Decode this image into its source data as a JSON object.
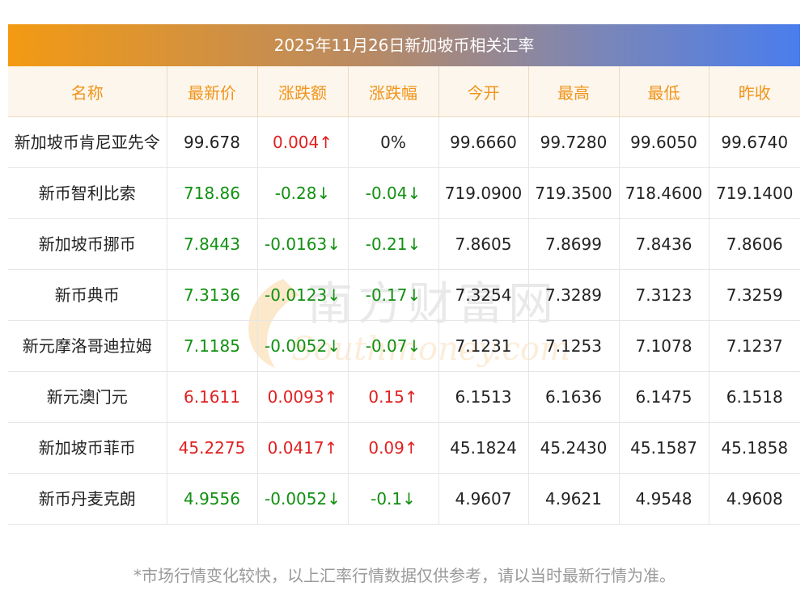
{
  "title": "2025年11月26日新加坡币相关汇率",
  "headers": [
    "名称",
    "最新价",
    "涨跌额",
    "涨跌幅",
    "今开",
    "最高",
    "最低",
    "昨收"
  ],
  "rows": [
    {
      "name": "新加坡币肯尼亚先令",
      "latest": "99.678",
      "change": "0.004↑",
      "pct": "0%",
      "open": "99.6660",
      "high": "99.7280",
      "low": "99.6050",
      "prev": "99.6740",
      "latest_dir": "flat",
      "change_dir": "up",
      "pct_dir": "flat"
    },
    {
      "name": "新币智利比索",
      "latest": "718.86",
      "change": "-0.28↓",
      "pct": "-0.04↓",
      "open": "719.0900",
      "high": "719.3500",
      "low": "718.4600",
      "prev": "719.1400",
      "latest_dir": "down",
      "change_dir": "down",
      "pct_dir": "down"
    },
    {
      "name": "新加坡币挪币",
      "latest": "7.8443",
      "change": "-0.0163↓",
      "pct": "-0.21↓",
      "open": "7.8605",
      "high": "7.8699",
      "low": "7.8436",
      "prev": "7.8606",
      "latest_dir": "down",
      "change_dir": "down",
      "pct_dir": "down"
    },
    {
      "name": "新币典币",
      "latest": "7.3136",
      "change": "-0.0123↓",
      "pct": "-0.17↓",
      "open": "7.3254",
      "high": "7.3289",
      "low": "7.3123",
      "prev": "7.3259",
      "latest_dir": "down",
      "change_dir": "down",
      "pct_dir": "down"
    },
    {
      "name": "新元摩洛哥迪拉姆",
      "latest": "7.1185",
      "change": "-0.0052↓",
      "pct": "-0.07↓",
      "open": "7.1231",
      "high": "7.1253",
      "low": "7.1078",
      "prev": "7.1237",
      "latest_dir": "down",
      "change_dir": "down",
      "pct_dir": "down"
    },
    {
      "name": "新元澳门元",
      "latest": "6.1611",
      "change": "0.0093↑",
      "pct": "0.15↑",
      "open": "6.1513",
      "high": "6.1636",
      "low": "6.1475",
      "prev": "6.1518",
      "latest_dir": "up",
      "change_dir": "up",
      "pct_dir": "up"
    },
    {
      "name": "新加坡币菲币",
      "latest": "45.2275",
      "change": "0.0417↑",
      "pct": "0.09↑",
      "open": "45.1824",
      "high": "45.2430",
      "low": "45.1587",
      "prev": "45.1858",
      "latest_dir": "up",
      "change_dir": "up",
      "pct_dir": "up"
    },
    {
      "name": "新币丹麦克朗",
      "latest": "4.9556",
      "change": "-0.0052↓",
      "pct": "-0.1↓",
      "open": "4.9607",
      "high": "4.9621",
      "low": "4.9548",
      "prev": "4.9608",
      "latest_dir": "down",
      "change_dir": "down",
      "pct_dir": "down"
    }
  ],
  "watermark": {
    "cn": "南方财富网",
    "en": "Southmoney.com"
  },
  "footer": "*市场行情变化较快，以上汇率行情数据仅供参考，请以当时最新行情为准。",
  "colors": {
    "up": "#e02020",
    "down": "#119011",
    "header_text": "#f0941a",
    "title_gradient_start": "#f39a12",
    "title_gradient_end": "#4a7ded"
  }
}
